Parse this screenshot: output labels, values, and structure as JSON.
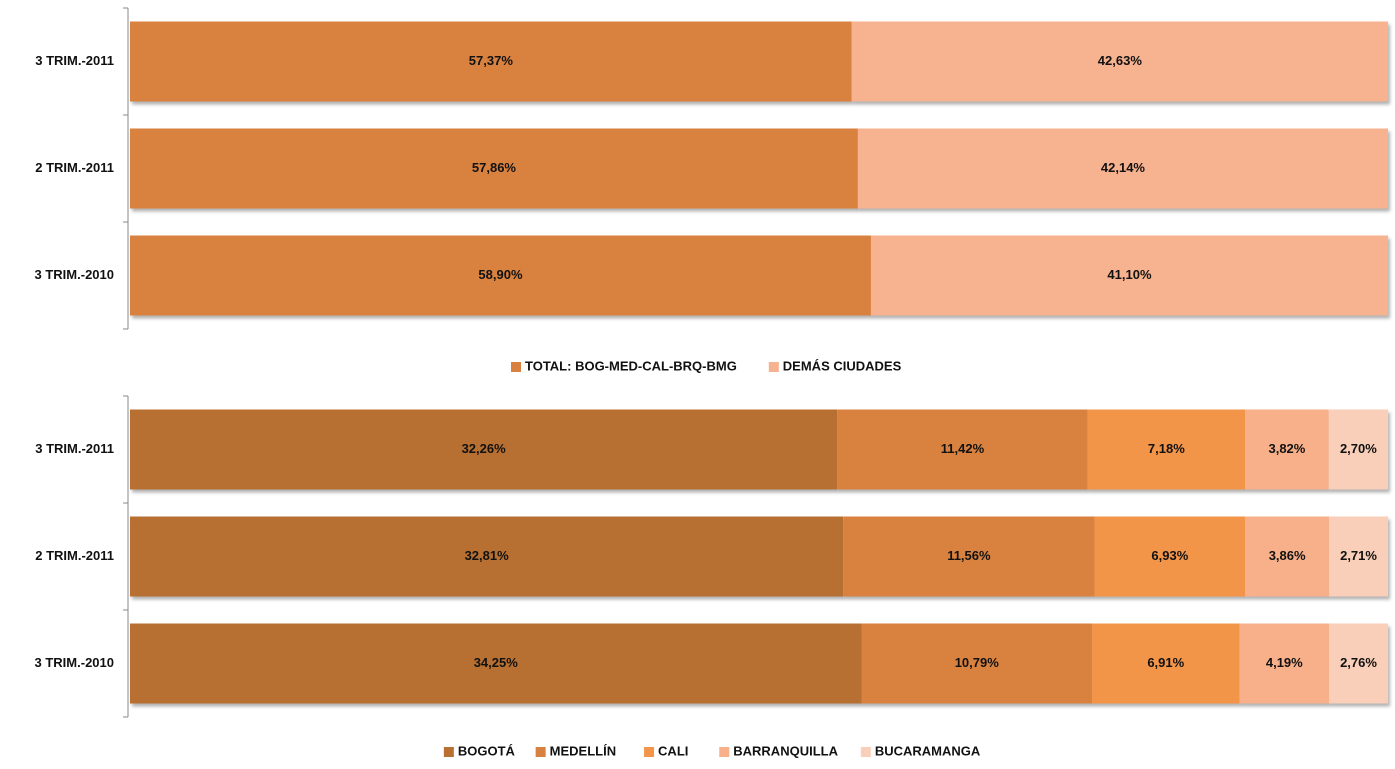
{
  "chart_data": [
    {
      "type": "bar",
      "orientation": "horizontal",
      "stacking": "percent",
      "categories": [
        "3 TRIM.-2011",
        "2 TRIM.-2011",
        "3 TRIM.-2010"
      ],
      "series": [
        {
          "name": "TOTAL: BOG-MED-CAL-BRQ-BMG",
          "color": "#d9823f",
          "values": [
            57.37,
            57.86,
            58.9
          ],
          "value_labels": [
            "57,37%",
            "57,86%",
            "58,90%"
          ]
        },
        {
          "name": "DEMÁS CIUDADES",
          "color": "#f7b28f",
          "values": [
            42.63,
            42.14,
            41.1
          ],
          "value_labels": [
            "42,63%",
            "42,14%",
            "41,10%"
          ]
        }
      ],
      "legend": "bottom"
    },
    {
      "type": "bar",
      "orientation": "horizontal",
      "stacking": "percent",
      "categories": [
        "3 TRIM.-2011",
        "2 TRIM.-2011",
        "3 TRIM.-2010"
      ],
      "series": [
        {
          "name": "BOGOTÁ",
          "color": "#b87033",
          "values": [
            32.26,
            32.81,
            34.25
          ],
          "value_labels": [
            "32,26%",
            "32,81%",
            "34,25%"
          ]
        },
        {
          "name": "MEDELLÍN",
          "color": "#d9823f",
          "values": [
            11.42,
            11.56,
            10.79
          ],
          "value_labels": [
            "11,42%",
            "11,56%",
            "10,79%"
          ]
        },
        {
          "name": "CALI",
          "color": "#f39548",
          "values": [
            7.18,
            6.93,
            6.91
          ],
          "value_labels": [
            "7,18%",
            "6,93%",
            "6,91%"
          ]
        },
        {
          "name": "BARRANQUILLA",
          "color": "#f7b08a",
          "values": [
            3.82,
            3.86,
            4.19
          ],
          "value_labels": [
            "3,82%",
            "3,86%",
            "4,19%"
          ]
        },
        {
          "name": "BUCARAMANGA",
          "color": "#f9cfb9",
          "values": [
            2.7,
            2.71,
            2.76
          ],
          "value_labels": [
            "2,70%",
            "2,71%",
            "2,76%"
          ]
        }
      ],
      "legend": "bottom"
    }
  ]
}
